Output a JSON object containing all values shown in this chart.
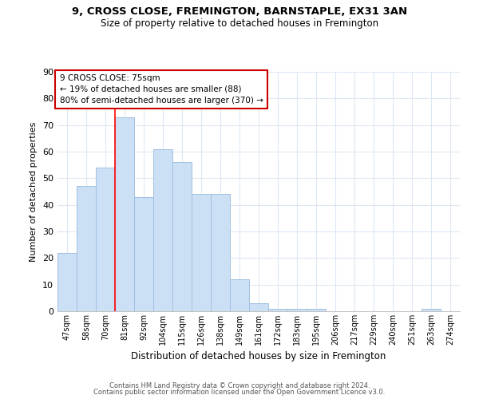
{
  "title1": "9, CROSS CLOSE, FREMINGTON, BARNSTAPLE, EX31 3AN",
  "title2": "Size of property relative to detached houses in Fremington",
  "xlabel": "Distribution of detached houses by size in Fremington",
  "ylabel": "Number of detached properties",
  "categories": [
    "47sqm",
    "58sqm",
    "70sqm",
    "81sqm",
    "92sqm",
    "104sqm",
    "115sqm",
    "126sqm",
    "138sqm",
    "149sqm",
    "161sqm",
    "172sqm",
    "183sqm",
    "195sqm",
    "206sqm",
    "217sqm",
    "229sqm",
    "240sqm",
    "251sqm",
    "263sqm",
    "274sqm"
  ],
  "values": [
    22,
    47,
    54,
    73,
    43,
    61,
    56,
    44,
    44,
    12,
    3,
    1,
    1,
    1,
    0,
    0,
    0,
    0,
    0,
    1,
    0
  ],
  "bar_color": "#cce0f5",
  "bar_edge_color": "#a0c0e0",
  "ylim": [
    0,
    90
  ],
  "yticks": [
    0,
    10,
    20,
    30,
    40,
    50,
    60,
    70,
    80,
    90
  ],
  "redline_x": 2.5,
  "annotation_title": "9 CROSS CLOSE: 75sqm",
  "annotation_line1": "← 19% of detached houses are smaller (88)",
  "annotation_line2": "80% of semi-detached houses are larger (370) →",
  "annotation_box_color": "#ffffff",
  "annotation_box_edge": "#cc0000",
  "footer1": "Contains HM Land Registry data © Crown copyright and database right 2024.",
  "footer2": "Contains public sector information licensed under the Open Government Licence v3.0.",
  "background_color": "#ffffff",
  "grid_color": "#dce8f5"
}
